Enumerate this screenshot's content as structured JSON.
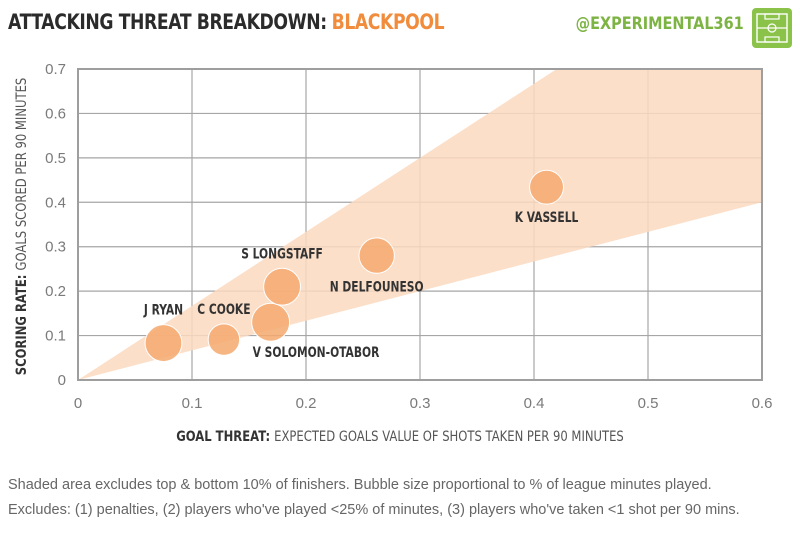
{
  "header": {
    "title": "ATTACKING THREAT BREAKDOWN:",
    "team": "BLACKPOOL",
    "handle": "@EXPERIMENTAL361",
    "accent_color": "#f08c3c",
    "handle_color": "#7cb342",
    "logo_icon": "football-pitch-icon"
  },
  "chart_data": {
    "type": "scatter",
    "xlabel_bold": "GOAL THREAT:",
    "xlabel": "EXPECTED GOALS VALUE OF SHOTS TAKEN PER 90 MINUTES",
    "ylabel_bold": "SCORING RATE:",
    "ylabel": "GOALS SCORED PER 90 MINUTES",
    "xlim": [
      0,
      0.6
    ],
    "ylim": [
      0,
      0.7
    ],
    "xticks": [
      "0",
      "0.1",
      "0.2",
      "0.3",
      "0.4",
      "0.5",
      "0.6"
    ],
    "yticks": [
      "0",
      "0.1",
      "0.2",
      "0.3",
      "0.4",
      "0.5",
      "0.6",
      "0.7"
    ],
    "grid": true,
    "shaded_band": {
      "upper_slope": 1.667,
      "lower_slope": 0.667,
      "color": "#fbd9bf"
    },
    "bubble_color": "#f5a96e",
    "points": [
      {
        "label": "J RYAN",
        "x": 0.075,
        "y": 0.083,
        "size": 0.85,
        "label_pos": "above"
      },
      {
        "label": "C COOKE",
        "x": 0.128,
        "y": 0.091,
        "size": 0.62,
        "label_pos": "above"
      },
      {
        "label": "V SOLOMON-OTABOR",
        "x": 0.169,
        "y": 0.13,
        "size": 0.9,
        "label_pos": "below-right"
      },
      {
        "label": "S LONGSTAFF",
        "x": 0.179,
        "y": 0.21,
        "size": 0.85,
        "label_pos": "above"
      },
      {
        "label": "N DELFOUNESO",
        "x": 0.262,
        "y": 0.28,
        "size": 0.78,
        "label_pos": "below"
      },
      {
        "label": "K VASSELL",
        "x": 0.411,
        "y": 0.434,
        "size": 0.72,
        "label_pos": "below"
      }
    ]
  },
  "footnotes": [
    "Shaded area excludes top & bottom 10% of finishers. Bubble size proportional to % of league minutes played.",
    "Excludes: (1) penalties, (2) players who've played <25% of minutes, (3) players who've taken <1 shot per 90 mins."
  ]
}
